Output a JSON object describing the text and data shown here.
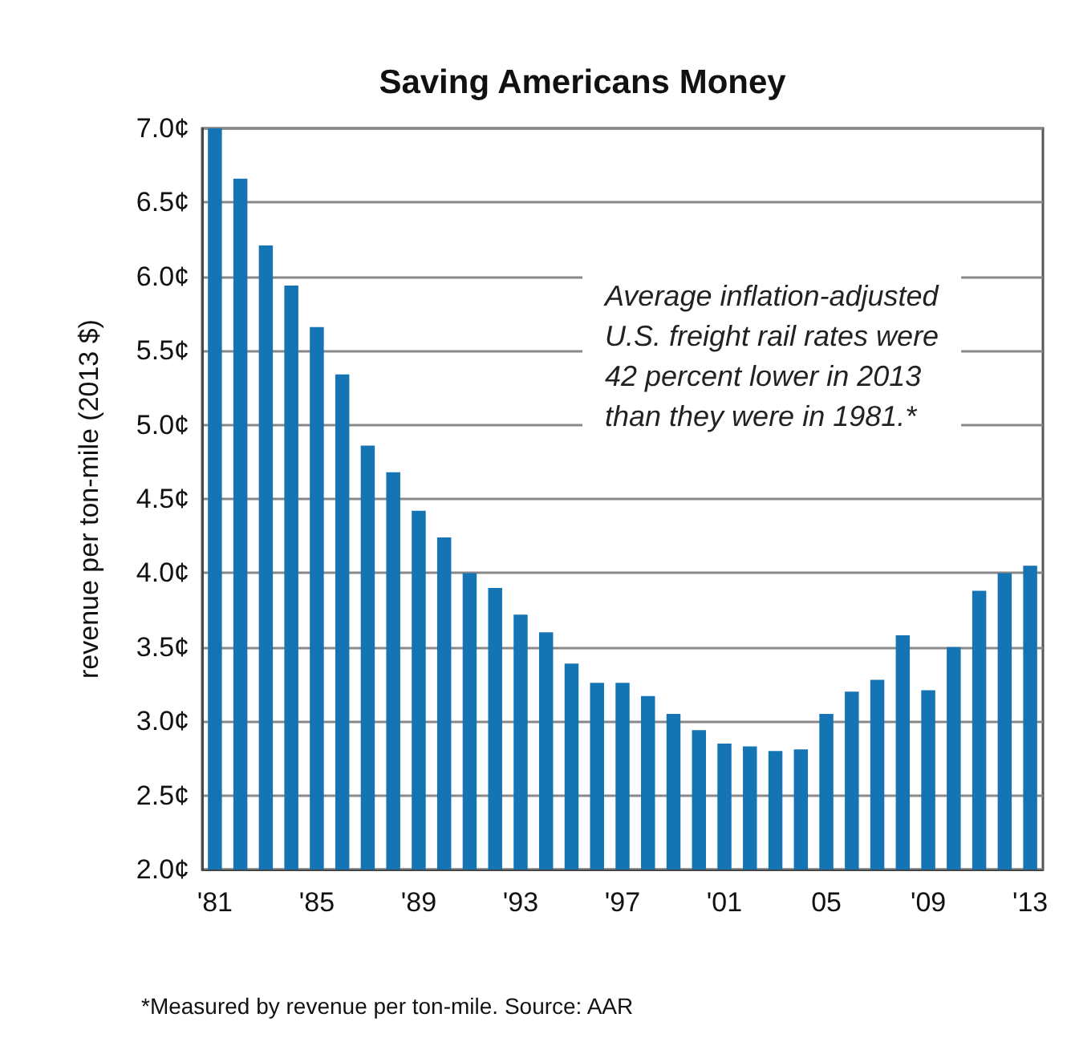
{
  "chart_data": {
    "type": "bar",
    "title": "Saving Americans Money",
    "ylabel": "revenue per ton-mile (2013 $)",
    "categories": [
      "'81",
      null,
      null,
      null,
      "'85",
      null,
      null,
      null,
      "'89",
      null,
      null,
      null,
      "'93",
      null,
      null,
      null,
      "'97",
      null,
      null,
      null,
      "'01",
      null,
      null,
      null,
      "05",
      null,
      null,
      null,
      "'09",
      null,
      null,
      null,
      "'13"
    ],
    "values": [
      7.0,
      6.66,
      6.21,
      5.94,
      5.66,
      5.34,
      4.86,
      4.68,
      4.42,
      4.24,
      4.0,
      3.9,
      3.72,
      3.6,
      3.39,
      3.26,
      3.26,
      3.17,
      3.05,
      2.94,
      2.85,
      2.83,
      2.8,
      2.81,
      3.05,
      3.2,
      3.28,
      3.58,
      3.21,
      3.5,
      3.88,
      4.0,
      4.05
    ],
    "color": "#1474b4",
    "ylim": [
      2.0,
      7.0
    ],
    "yticks": [
      {
        "value": 2.0,
        "label": "2.0¢"
      },
      {
        "value": 2.5,
        "label": "2.5¢"
      },
      {
        "value": 3.0,
        "label": "3.0¢"
      },
      {
        "value": 3.5,
        "label": "3.5¢"
      },
      {
        "value": 4.0,
        "label": "4.0¢"
      },
      {
        "value": 4.5,
        "label": "4.5¢"
      },
      {
        "value": 5.0,
        "label": "5.0¢"
      },
      {
        "value": 5.5,
        "label": "5.5¢"
      },
      {
        "value": 6.0,
        "label": "6.0¢"
      },
      {
        "value": 6.5,
        "label": "6.5¢"
      },
      {
        "value": 7.0,
        "label": "7.0¢"
      }
    ],
    "grid": "y",
    "annotations": [
      "Average inflation-adjusted\nU.S. freight rail rates were\n42 percent lower in 2013\nthan they were in 1981.*",
      "*Measured by revenue per ton-mile. Source: AAR"
    ]
  }
}
